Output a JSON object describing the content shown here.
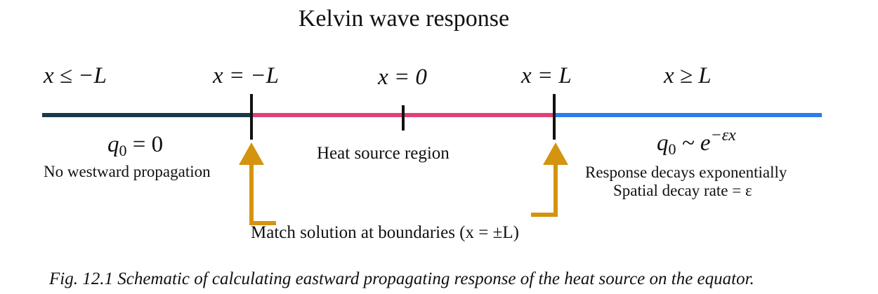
{
  "title": "Kelvin wave response",
  "labels": {
    "left_region": "x ≤ −L",
    "left_boundary": "x = −L",
    "center": "x = 0",
    "right_boundary": "x = L",
    "right_region": "x ≥ L"
  },
  "left_condition": {
    "q_symbol": "q",
    "q_subscript": "0",
    "q_rhs": "= 0",
    "note": "No westward propagation"
  },
  "middle": {
    "region_label": "Heat source region",
    "match_note": "Match solution at boundaries (x = ±L)"
  },
  "right_condition": {
    "q_symbol": "q",
    "q_subscript": "0",
    "q_rel": "~ e",
    "q_exponent": "−εx",
    "note1": "Response decays exponentially",
    "note2": "Spatial decay rate = ε"
  },
  "colors": {
    "west_segment": "#1a3a4a",
    "source_segment": "#e0407a",
    "east_segment": "#2b7de9",
    "arrow": "#d4940f"
  },
  "caption": "Fig. 12.1  Schematic of calculating eastward propagating response of the heat source on the equator."
}
